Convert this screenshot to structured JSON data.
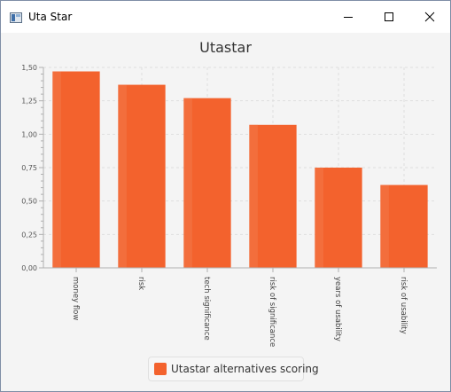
{
  "window": {
    "title": "Uta Star"
  },
  "colors": {
    "bar": "#f3622d",
    "bar_highlight": "#f47a4b",
    "grid": "#dedede",
    "axis": "#b0b0b0",
    "window_bg": "#f4f4f4"
  },
  "chart_data": {
    "type": "bar",
    "title": "Utastar",
    "categories": [
      "money flow",
      "risk",
      "tech significance",
      "risk of significance",
      "years of usability",
      "risk of usability"
    ],
    "series": [
      {
        "name": "Utastar alternatives scoring",
        "values": [
          1.47,
          1.37,
          1.27,
          1.07,
          0.75,
          0.62
        ]
      }
    ],
    "yticks": [
      "0,00",
      "0,25",
      "0,50",
      "0,75",
      "1,00",
      "1,25",
      "1,50"
    ],
    "ylim": [
      0,
      1.5
    ],
    "xlabel": "",
    "ylabel": "",
    "grid": true,
    "legend_position": "bottom"
  }
}
